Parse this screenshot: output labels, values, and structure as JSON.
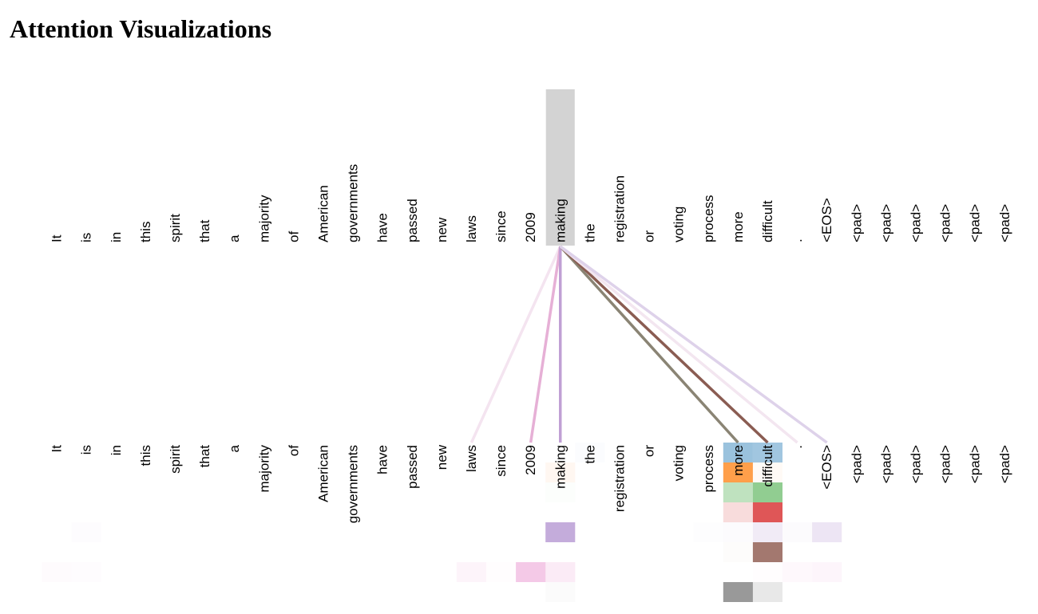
{
  "title": "Attention Visualizations",
  "tokens": [
    "It",
    "is",
    "in",
    "this",
    "spirit",
    "that",
    "a",
    "majority",
    "of",
    "American",
    "governments",
    "have",
    "passed",
    "new",
    "laws",
    "since",
    "2009",
    "making",
    "the",
    "registration",
    "or",
    "voting",
    "process",
    "more",
    "difficult",
    ".",
    "<EOS>",
    "<pad>",
    "<pad>",
    "<pad>",
    "<pad>",
    "<pad>",
    "<pad>"
  ],
  "selected_token_index": 17,
  "highlight_color": "#d3d3d3",
  "head_colors": [
    "#1f77b4",
    "#ff7f0e",
    "#2ca02c",
    "#d62728",
    "#9467bd",
    "#8c564b",
    "#e377c2",
    "#7f7f7f"
  ],
  "attention_cells": [
    [
      0,
      18,
      0.02
    ],
    [
      0,
      23,
      0.45
    ],
    [
      0,
      24,
      0.42
    ],
    [
      1,
      17,
      0.06
    ],
    [
      1,
      23,
      0.75
    ],
    [
      1,
      24,
      0.04
    ],
    [
      2,
      17,
      0.015
    ],
    [
      2,
      23,
      0.3
    ],
    [
      2,
      24,
      0.52
    ],
    [
      3,
      23,
      0.16
    ],
    [
      3,
      24,
      0.78
    ],
    [
      4,
      1,
      0.02
    ],
    [
      4,
      17,
      0.55
    ],
    [
      4,
      22,
      0.015
    ],
    [
      4,
      23,
      0.025
    ],
    [
      4,
      24,
      0.13
    ],
    [
      4,
      25,
      0.025
    ],
    [
      4,
      26,
      0.17
    ],
    [
      5,
      23,
      0.02
    ],
    [
      5,
      24,
      0.8
    ],
    [
      6,
      0,
      0.03
    ],
    [
      6,
      1,
      0.02
    ],
    [
      6,
      14,
      0.08
    ],
    [
      6,
      15,
      0.015
    ],
    [
      6,
      16,
      0.4
    ],
    [
      6,
      17,
      0.15
    ],
    [
      6,
      24,
      0.01
    ],
    [
      6,
      25,
      0.05
    ],
    [
      6,
      26,
      0.07
    ],
    [
      7,
      17,
      0.03
    ],
    [
      7,
      23,
      0.8
    ],
    [
      7,
      24,
      0.18
    ]
  ],
  "attention_lines": [
    {
      "target": 14,
      "color": "#f4e4f0"
    },
    {
      "target": 16,
      "color": "#e6b0d6"
    },
    {
      "target": 17,
      "color": "#c0a0d4"
    },
    {
      "target": 23,
      "color": "#8a8474"
    },
    {
      "target": 24,
      "color": "#8a5c52"
    },
    {
      "target": 25,
      "color": "#f3e6f0"
    },
    {
      "target": 26,
      "color": "#ded2ea"
    }
  ]
}
